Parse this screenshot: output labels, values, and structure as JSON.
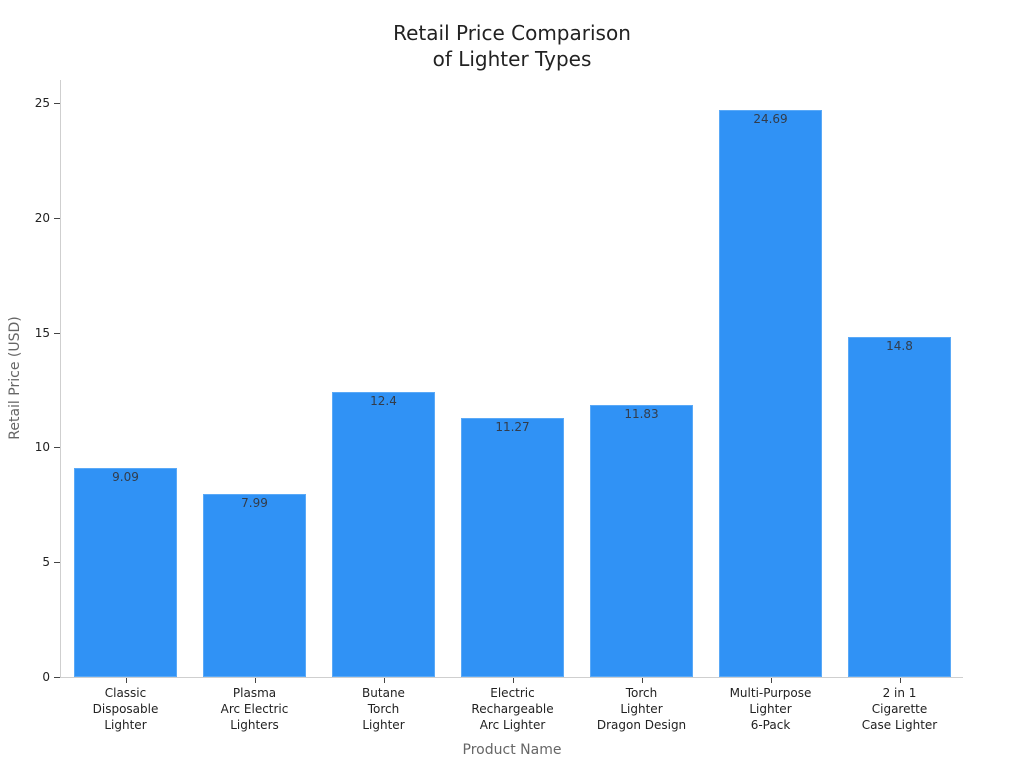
{
  "chart_data": {
    "type": "bar",
    "title": "Retail Price Comparison\nof Lighter Types",
    "title_lines": [
      "Retail Price Comparison",
      "of Lighter Types"
    ],
    "xlabel": "Product Name",
    "ylabel": "Retail Price (USD)",
    "categories": [
      "Classic\nDisposable\nLighter",
      "Plasma\nArc Electric\nLighters",
      "Butane\nTorch\nLighter",
      "Electric\nRechargeable\nArc Lighter",
      "Torch\nLighter\nDragon Design",
      "Multi-Purpose\nLighter\n6-Pack",
      "2 in 1\nCigarette\nCase Lighter"
    ],
    "values": [
      9.09,
      7.99,
      12.4,
      11.27,
      11.83,
      24.69,
      14.8
    ],
    "value_labels": [
      "9.09",
      "7.99",
      "12.4",
      "11.27",
      "11.83",
      "24.69",
      "14.8"
    ],
    "yticks": [
      0,
      5,
      10,
      15,
      20,
      25
    ],
    "ytick_labels": [
      "0",
      "5",
      "10",
      "15",
      "20",
      "25"
    ],
    "ylim": [
      0,
      26
    ],
    "grid": false,
    "legend": null,
    "bar_color": "#3092f5"
  }
}
